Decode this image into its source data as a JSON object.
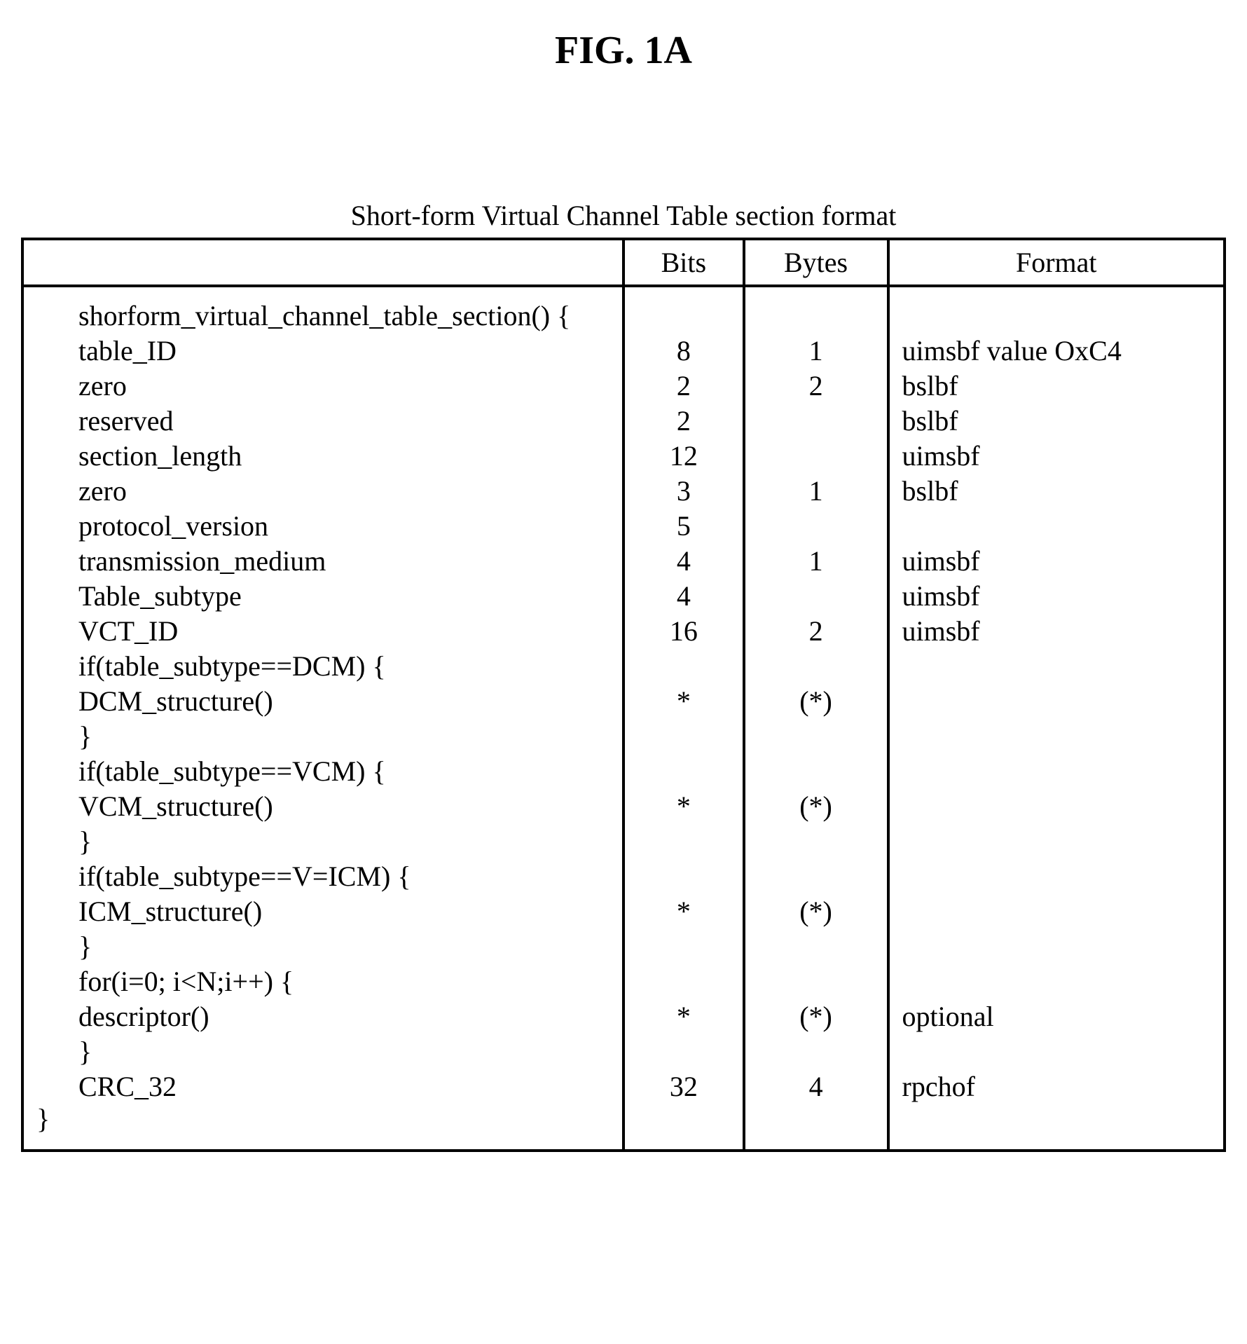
{
  "figure_title": "FIG. 1A",
  "caption": "Short-form Virtual Channel Table section format",
  "headers": {
    "syntax": "",
    "bits": "Bits",
    "bytes": "Bytes",
    "format": "Format"
  },
  "rows": [
    {
      "syntax": "shorform_virtual_channel_table_section() {",
      "bits": "",
      "bytes": "",
      "format": ""
    },
    {
      "syntax": "table_ID",
      "bits": "8",
      "bytes": "1",
      "format": "uimsbf value OxC4"
    },
    {
      "syntax": "zero",
      "bits": "2",
      "bytes": "2",
      "format": "bslbf"
    },
    {
      "syntax": "reserved",
      "bits": "2",
      "bytes": "",
      "format": "bslbf"
    },
    {
      "syntax": "section_length",
      "bits": "12",
      "bytes": "",
      "format": "uimsbf"
    },
    {
      "syntax": "zero",
      "bits": "3",
      "bytes": "1",
      "format": "bslbf"
    },
    {
      "syntax": "protocol_version",
      "bits": "5",
      "bytes": "",
      "format": ""
    },
    {
      "syntax": "transmission_medium",
      "bits": "4",
      "bytes": "1",
      "format": "uimsbf"
    },
    {
      "syntax": "Table_subtype",
      "bits": "4",
      "bytes": "",
      "format": "uimsbf"
    },
    {
      "syntax": "VCT_ID",
      "bits": "16",
      "bytes": "2",
      "format": "uimsbf"
    },
    {
      "syntax": "if(table_subtype==DCM) {",
      "bits": "",
      "bytes": "",
      "format": ""
    },
    {
      "syntax": "DCM_structure()",
      "bits": "*",
      "bytes": "(*)",
      "format": ""
    },
    {
      "syntax": "}",
      "bits": "",
      "bytes": "",
      "format": ""
    },
    {
      "syntax": "if(table_subtype==VCM) {",
      "bits": "",
      "bytes": "",
      "format": ""
    },
    {
      "syntax": "VCM_structure()",
      "bits": "*",
      "bytes": "(*)",
      "format": ""
    },
    {
      "syntax": "}",
      "bits": "",
      "bytes": "",
      "format": ""
    },
    {
      "syntax": "if(table_subtype==V=ICM) {",
      "bits": "",
      "bytes": "",
      "format": ""
    },
    {
      "syntax": "ICM_structure()",
      "bits": "*",
      "bytes": "(*)",
      "format": ""
    },
    {
      "syntax": "}",
      "bits": "",
      "bytes": "",
      "format": ""
    },
    {
      "syntax": "for(i=0; i<N;i++) {",
      "bits": "",
      "bytes": "",
      "format": ""
    },
    {
      "syntax": "descriptor()",
      "bits": "*",
      "bytes": "(*)",
      "format": "optional"
    },
    {
      "syntax": "}",
      "bits": "",
      "bytes": "",
      "format": ""
    },
    {
      "syntax": "CRC_32",
      "bits": "32",
      "bytes": "4",
      "format": "rpchof"
    }
  ],
  "closing_brace": "}"
}
